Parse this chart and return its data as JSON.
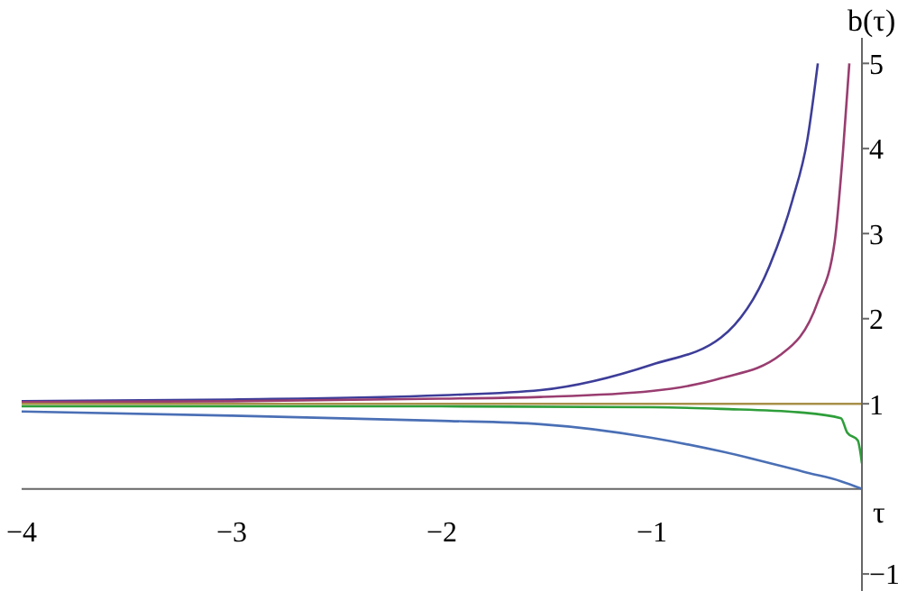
{
  "chart_data": {
    "type": "line",
    "xlabel": "τ",
    "ylabel": "b(τ)",
    "xlim": [
      -4,
      0
    ],
    "ylim": [
      -1.2,
      5.3
    ],
    "xticks": [
      -4,
      -3,
      -2,
      -1
    ],
    "yticks": [
      -1,
      1,
      2,
      3,
      4,
      5
    ],
    "marker": "none",
    "line_style": "solid",
    "series": [
      {
        "color": "#3d3d99",
        "x": [
          -4,
          -3,
          -2,
          -1.53,
          -1,
          -0.67,
          -0.44,
          -0.33,
          -0.26,
          -0.21
        ],
        "values": [
          1.03,
          1.05,
          1.1,
          1.16,
          1.46,
          1.78,
          2.62,
          3.4,
          4.1,
          5.0
        ]
      },
      {
        "color": "#993d70",
        "x": [
          -4,
          -3,
          -2,
          -1.53,
          -1,
          -0.67,
          -0.39,
          -0.21,
          -0.13,
          -0.09,
          -0.06
        ],
        "values": [
          1.02,
          1.03,
          1.06,
          1.08,
          1.15,
          1.3,
          1.57,
          2.2,
          2.9,
          3.97,
          5.0
        ]
      },
      {
        "color": "#a8904a",
        "x": [
          -4,
          0
        ],
        "values": [
          1,
          1
        ]
      },
      {
        "color": "#2e9e3a",
        "x": [
          -4,
          -3,
          -2,
          -1,
          -0.67,
          -0.3,
          -0.1,
          -0.07,
          -0.02,
          0
        ],
        "values": [
          0.97,
          0.97,
          0.97,
          0.96,
          0.94,
          0.9,
          0.83,
          0.66,
          0.57,
          0.3
        ]
      },
      {
        "color": "#4a6fb5",
        "x": [
          -4,
          -3,
          -2,
          -1.53,
          -1,
          -0.67,
          -0.26,
          -0.1,
          0
        ],
        "values": [
          0.91,
          0.86,
          0.8,
          0.76,
          0.6,
          0.44,
          0.19,
          0.09,
          0
        ]
      }
    ]
  }
}
